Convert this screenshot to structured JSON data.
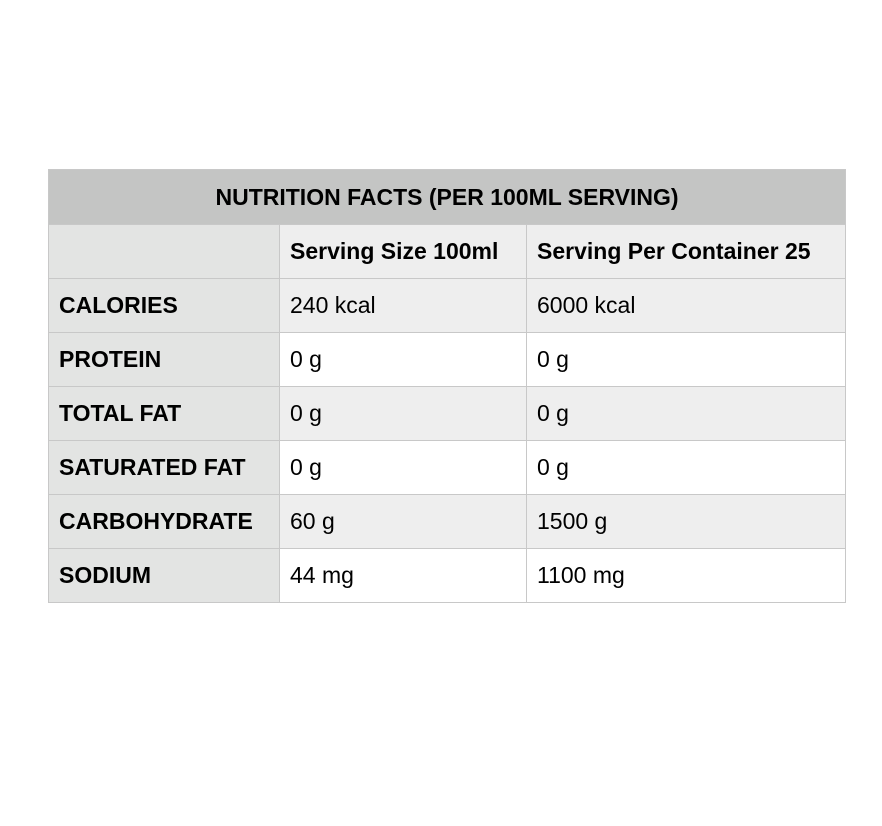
{
  "table": {
    "title": "NUTRITION FACTS (PER 100ML SERVING)",
    "header": {
      "corner": "",
      "col_a": "Serving Size 100ml",
      "col_b": "Serving Per Container 25"
    },
    "rows": [
      {
        "label": "CALORIES",
        "a": "240 kcal",
        "b": "6000 kcal"
      },
      {
        "label": "PROTEIN",
        "a": "0 g",
        "b": "0 g"
      },
      {
        "label": "TOTAL FAT",
        "a": "0 g",
        "b": "0 g"
      },
      {
        "label": "SATURATED FAT",
        "a": "0 g",
        "b": "0 g"
      },
      {
        "label": "CARBOHYDRATE",
        "a": "60 g",
        "b": "1500 g"
      },
      {
        "label": "SODIUM",
        "a": "44 mg",
        "b": "1100 mg"
      }
    ]
  }
}
